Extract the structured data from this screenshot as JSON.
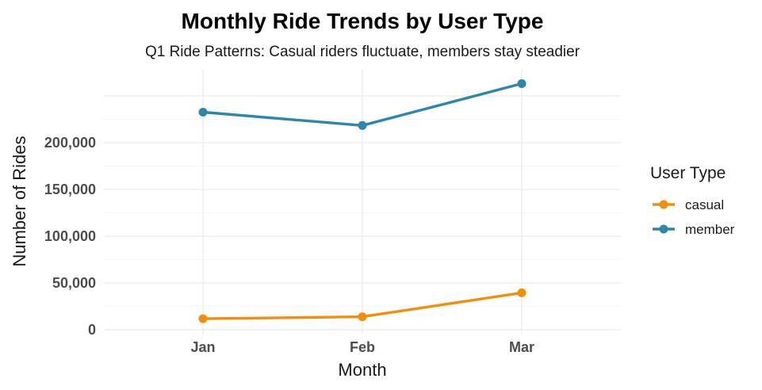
{
  "chart_data": {
    "type": "line",
    "title": "Monthly Ride Trends by User Type",
    "subtitle": "Q1 Ride Patterns: Casual riders fluctuate, members stay steadier",
    "xlabel": "Month",
    "ylabel": "Number of Rides",
    "categories": [
      "Jan",
      "Feb",
      "Mar"
    ],
    "ylim": [
      0,
      265000
    ],
    "yticks": [
      0,
      50000,
      100000,
      150000,
      200000
    ],
    "ytick_labels": [
      "0",
      "50,000",
      "100,000",
      "150,000",
      "200,000"
    ],
    "grid": true,
    "legend": {
      "title": "User Type",
      "placement": "right"
    },
    "series": [
      {
        "name": "casual",
        "color": "#F28E0B",
        "values": [
          11800,
          13900,
          39500
        ]
      },
      {
        "name": "member",
        "color": "#2E86AB",
        "values": [
          232600,
          218400,
          263100
        ]
      }
    ]
  }
}
